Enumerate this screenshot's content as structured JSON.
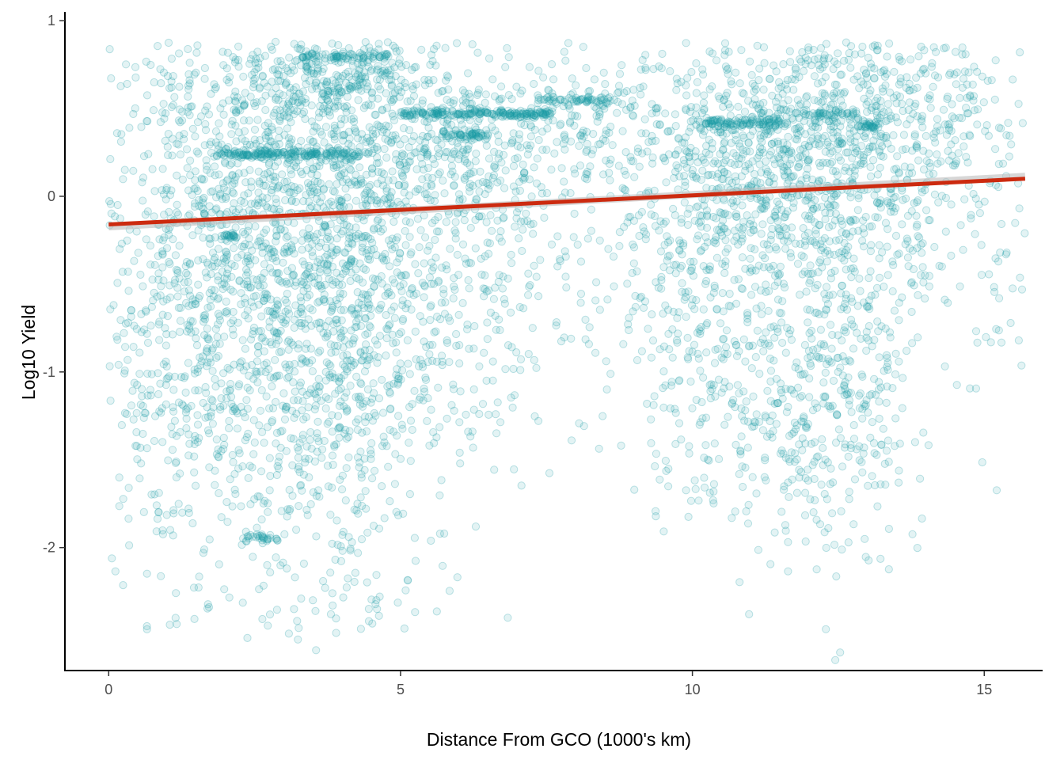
{
  "chart_data": {
    "type": "scatter",
    "xlabel": "Distance From GCO (1000's km)",
    "ylabel": "Log10 Yield",
    "xlim": [
      -0.75,
      16.0
    ],
    "ylim": [
      -2.7,
      1.05
    ],
    "x_ticks": [
      0,
      5,
      10,
      15
    ],
    "x_tick_labels": [
      "0",
      "5",
      "10",
      "15"
    ],
    "y_ticks": [
      -2,
      -1,
      0,
      1
    ],
    "y_tick_labels": [
      "-2",
      "-1",
      "0",
      "1"
    ],
    "grid": false,
    "legend": "none",
    "point_color": "#1a9ba6",
    "point_fill_opacity": 0.12,
    "point_stroke_opacity": 0.28,
    "trend_color": "#cc2a0f",
    "trend_line": {
      "x": [
        0,
        15.7
      ],
      "y": [
        -0.16,
        0.1
      ]
    },
    "point_clusters": [
      {
        "x": 3.2,
        "y": 0.15,
        "sx": 1.6,
        "sy": 0.55,
        "n": 1200
      },
      {
        "x": 3.8,
        "y": -0.8,
        "sx": 1.0,
        "sy": 0.6,
        "n": 650
      },
      {
        "x": 1.5,
        "y": -0.7,
        "sx": 1.0,
        "sy": 0.7,
        "n": 480
      },
      {
        "x": 4.0,
        "y": 0.7,
        "sx": 0.8,
        "sy": 0.15,
        "n": 200
      },
      {
        "x": 6.5,
        "y": 0.25,
        "sx": 1.2,
        "sy": 0.35,
        "n": 380
      },
      {
        "x": 6.5,
        "y": -0.55,
        "sx": 1.2,
        "sy": 0.6,
        "n": 230
      },
      {
        "x": 2.5,
        "y": -1.6,
        "sx": 1.5,
        "sy": 0.35,
        "n": 200
      },
      {
        "x": 8.3,
        "y": 0.4,
        "sx": 0.5,
        "sy": 0.15,
        "n": 50
      },
      {
        "x": 10.8,
        "y": 0.25,
        "sx": 1.0,
        "sy": 0.35,
        "n": 520
      },
      {
        "x": 10.5,
        "y": -0.6,
        "sx": 0.8,
        "sy": 0.55,
        "n": 330
      },
      {
        "x": 12.6,
        "y": 0.3,
        "sx": 0.9,
        "sy": 0.4,
        "n": 560
      },
      {
        "x": 12.6,
        "y": -0.7,
        "sx": 0.8,
        "sy": 0.6,
        "n": 420
      },
      {
        "x": 11.8,
        "y": -1.5,
        "sx": 1.1,
        "sy": 0.3,
        "n": 130
      },
      {
        "x": 14.2,
        "y": 0.45,
        "sx": 0.5,
        "sy": 0.3,
        "n": 130
      },
      {
        "x": 15.2,
        "y": -0.1,
        "sx": 0.4,
        "sy": 0.6,
        "n": 55
      },
      {
        "x": 9.5,
        "y": -0.7,
        "sx": 0.4,
        "sy": 0.5,
        "n": 40
      },
      {
        "x": 3.5,
        "y": -2.3,
        "sx": 1.2,
        "sy": 0.1,
        "n": 40
      }
    ],
    "point_bands": [
      {
        "x0": 1.8,
        "x1": 4.3,
        "y": 0.24,
        "n": 180
      },
      {
        "x0": 5.0,
        "x1": 7.6,
        "y": 0.47,
        "n": 200
      },
      {
        "x0": 5.7,
        "x1": 6.5,
        "y": 0.35,
        "n": 50
      },
      {
        "x0": 7.3,
        "x1": 8.7,
        "y": 0.55,
        "n": 60
      },
      {
        "x0": 10.2,
        "x1": 11.5,
        "y": 0.42,
        "n": 90
      },
      {
        "x0": 11.9,
        "x1": 12.8,
        "y": 0.47,
        "n": 40
      },
      {
        "x0": 12.8,
        "x1": 13.2,
        "y": 0.4,
        "n": 25
      },
      {
        "x0": 3.3,
        "x1": 4.8,
        "y": 0.8,
        "n": 60
      },
      {
        "x0": 1.9,
        "x1": 2.2,
        "y": -0.23,
        "n": 20
      },
      {
        "x0": 2.3,
        "x1": 2.9,
        "y": -1.95,
        "n": 30
      }
    ]
  }
}
